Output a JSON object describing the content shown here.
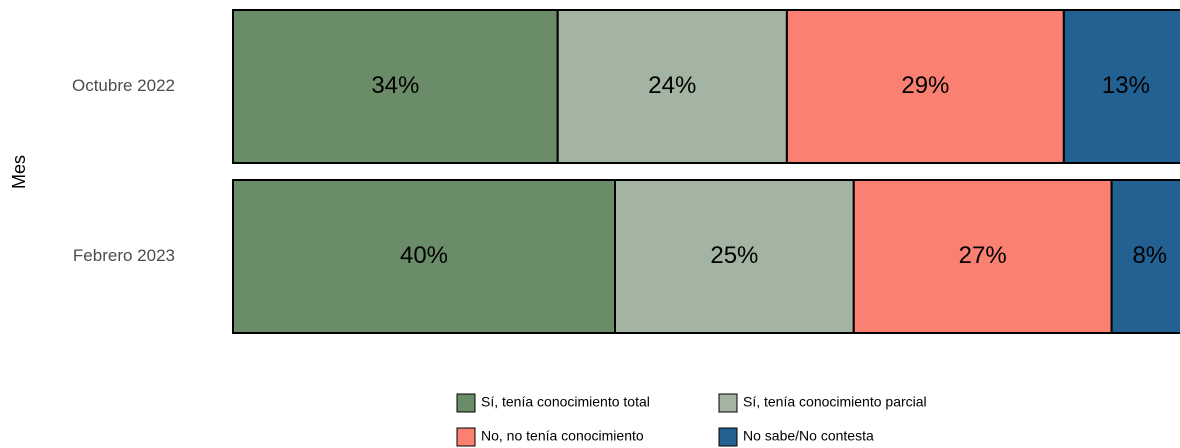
{
  "chart_data": {
    "type": "stacked_barh",
    "y_label": "Mes",
    "categories": [
      "Octubre 2022",
      "Febrero 2023"
    ],
    "series": [
      {
        "name": "Sí, tenía conocimiento total",
        "color": "#6b8c69",
        "values": [
          34,
          40
        ],
        "value_labels": [
          "34%",
          "40%"
        ]
      },
      {
        "name": "Sí, tenía conocimiento parcial",
        "color": "#a3b4a2",
        "values": [
          24,
          25
        ],
        "value_labels": [
          "24%",
          "25%"
        ]
      },
      {
        "name": "No, no tenía conocimiento",
        "color": "#fa8072",
        "values": [
          29,
          27
        ],
        "value_labels": [
          "29%",
          "27%"
        ]
      },
      {
        "name": "No sabe/No contesta",
        "color": "#236192",
        "values": [
          13,
          8
        ],
        "value_labels": [
          "13%",
          "8%"
        ]
      }
    ],
    "xlim": [
      0,
      100
    ]
  }
}
